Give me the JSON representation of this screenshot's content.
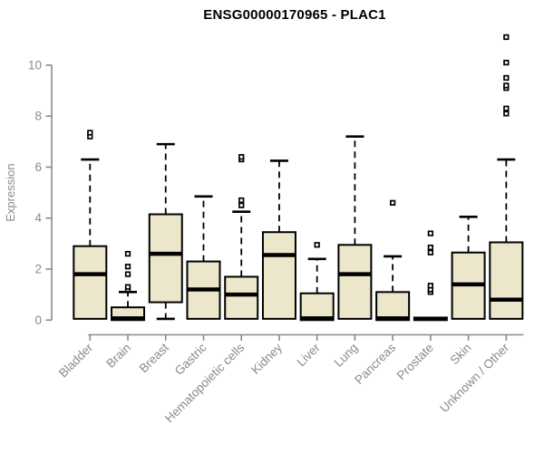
{
  "title": "ENSG00000170965 - PLAC1",
  "y_axis": {
    "label": "Expression",
    "ticks": [
      "0",
      "2",
      "4",
      "6",
      "8",
      "10"
    ]
  },
  "colors": {
    "box_fill": "#ECE7CA",
    "box_stroke": "#000000",
    "median": "#000000",
    "whisker": "#000000",
    "axis": "#8a8a8a",
    "tick_label": "#8a8a8a",
    "title": "#000000",
    "background": "#ffffff"
  },
  "chart_data": {
    "type": "boxplot",
    "title": "ENSG00000170965 - PLAC1",
    "xlabel": "",
    "ylabel": "Expression",
    "ylim": [
      0,
      11.3
    ],
    "y_ticks": [
      0,
      2,
      4,
      6,
      8,
      10
    ],
    "grid": false,
    "legend": false,
    "categories": [
      "Bladder",
      "Brain",
      "Breast",
      "Gastric",
      "Hematopoietic cells",
      "Kidney",
      "Liver",
      "Lung",
      "Pancreas",
      "Prostate",
      "Skin",
      "Unknown / Other"
    ],
    "series": [
      {
        "name": "Bladder",
        "whisker_low": null,
        "q1": 0.05,
        "median": 1.8,
        "q3": 2.9,
        "whisker_high": 6.3,
        "outliers": [
          7.2,
          7.35
        ]
      },
      {
        "name": "Brain",
        "whisker_low": null,
        "q1": 0.0,
        "median": 0.07,
        "q3": 0.5,
        "whisker_high": 1.1,
        "outliers": [
          1.2,
          1.3,
          1.8,
          2.1,
          2.6
        ]
      },
      {
        "name": "Breast",
        "whisker_low": 0.05,
        "q1": 0.7,
        "median": 2.6,
        "q3": 4.15,
        "whisker_high": 6.9,
        "outliers": []
      },
      {
        "name": "Gastric",
        "whisker_low": null,
        "q1": 0.05,
        "median": 1.2,
        "q3": 2.3,
        "whisker_high": 4.85,
        "outliers": []
      },
      {
        "name": "Hematopoietic cells",
        "whisker_low": null,
        "q1": 0.05,
        "median": 1.0,
        "q3": 1.7,
        "whisker_high": 4.25,
        "outliers": [
          4.5,
          4.7,
          6.3,
          6.4
        ]
      },
      {
        "name": "Kidney",
        "whisker_low": null,
        "q1": 0.05,
        "median": 2.55,
        "q3": 3.45,
        "whisker_high": 6.25,
        "outliers": []
      },
      {
        "name": "Liver",
        "whisker_low": null,
        "q1": 0.0,
        "median": 0.07,
        "q3": 1.05,
        "whisker_high": 2.4,
        "outliers": [
          2.95
        ]
      },
      {
        "name": "Lung",
        "whisker_low": null,
        "q1": 0.05,
        "median": 1.8,
        "q3": 2.95,
        "whisker_high": 7.2,
        "outliers": []
      },
      {
        "name": "Pancreas",
        "whisker_low": null,
        "q1": 0.0,
        "median": 0.07,
        "q3": 1.1,
        "whisker_high": 2.5,
        "outliers": [
          4.6
        ]
      },
      {
        "name": "Prostate",
        "whisker_low": null,
        "q1": 0.0,
        "median": 0.05,
        "q3": 0.1,
        "whisker_high": null,
        "outliers": [
          1.1,
          1.2,
          1.35,
          2.65,
          2.85,
          3.4
        ]
      },
      {
        "name": "Skin",
        "whisker_low": null,
        "q1": 0.05,
        "median": 1.4,
        "q3": 2.65,
        "whisker_high": 4.05,
        "outliers": []
      },
      {
        "name": "Unknown / Other",
        "whisker_low": null,
        "q1": 0.05,
        "median": 0.8,
        "q3": 3.05,
        "whisker_high": 6.3,
        "outliers": [
          8.1,
          8.3,
          9.1,
          9.2,
          9.5,
          10.1,
          11.1
        ]
      }
    ]
  }
}
